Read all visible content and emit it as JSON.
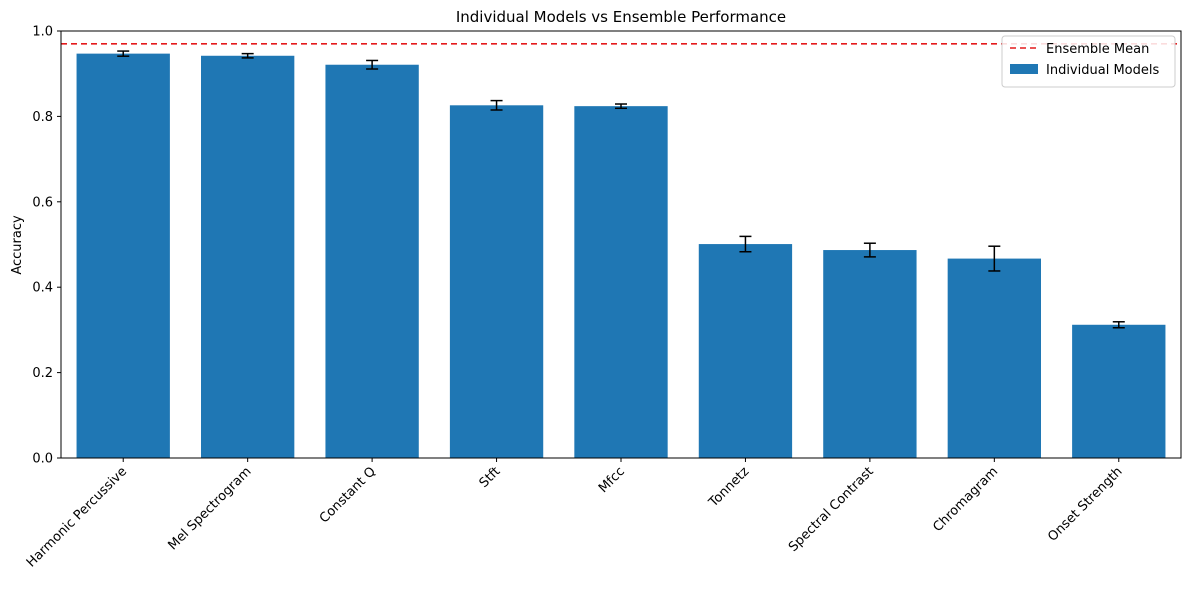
{
  "chart_data": {
    "type": "bar",
    "title": "Individual Models vs Ensemble Performance",
    "xlabel": "",
    "ylabel": "Accuracy",
    "ylim": [
      0,
      1.0
    ],
    "yticks": [
      0.0,
      0.2,
      0.4,
      0.6,
      0.8,
      1.0
    ],
    "ytick_labels": [
      "0.0",
      "0.2",
      "0.4",
      "0.6",
      "0.8",
      "1.0"
    ],
    "categories": [
      "Harmonic Percussive",
      "Mel Spectrogram",
      "Constant Q",
      "Stft",
      "Mfcc",
      "Tonnetz",
      "Spectral Contrast",
      "Chromagram",
      "Onset Strength"
    ],
    "series": [
      {
        "name": "Individual Models",
        "values": [
          0.947,
          0.942,
          0.921,
          0.826,
          0.824,
          0.501,
          0.487,
          0.467,
          0.312
        ],
        "errors": [
          0.006,
          0.005,
          0.01,
          0.011,
          0.005,
          0.018,
          0.016,
          0.029,
          0.007
        ]
      }
    ],
    "reference_line": {
      "name": "Ensemble Mean",
      "value": 0.97,
      "style": "dashed"
    },
    "legend": {
      "placement": "top-right",
      "entries": [
        "Ensemble Mean",
        "Individual Models"
      ]
    },
    "colors": {
      "bar": "#1f77b4",
      "reference": "#e41a1c",
      "error": "#000000"
    },
    "grid": false
  }
}
